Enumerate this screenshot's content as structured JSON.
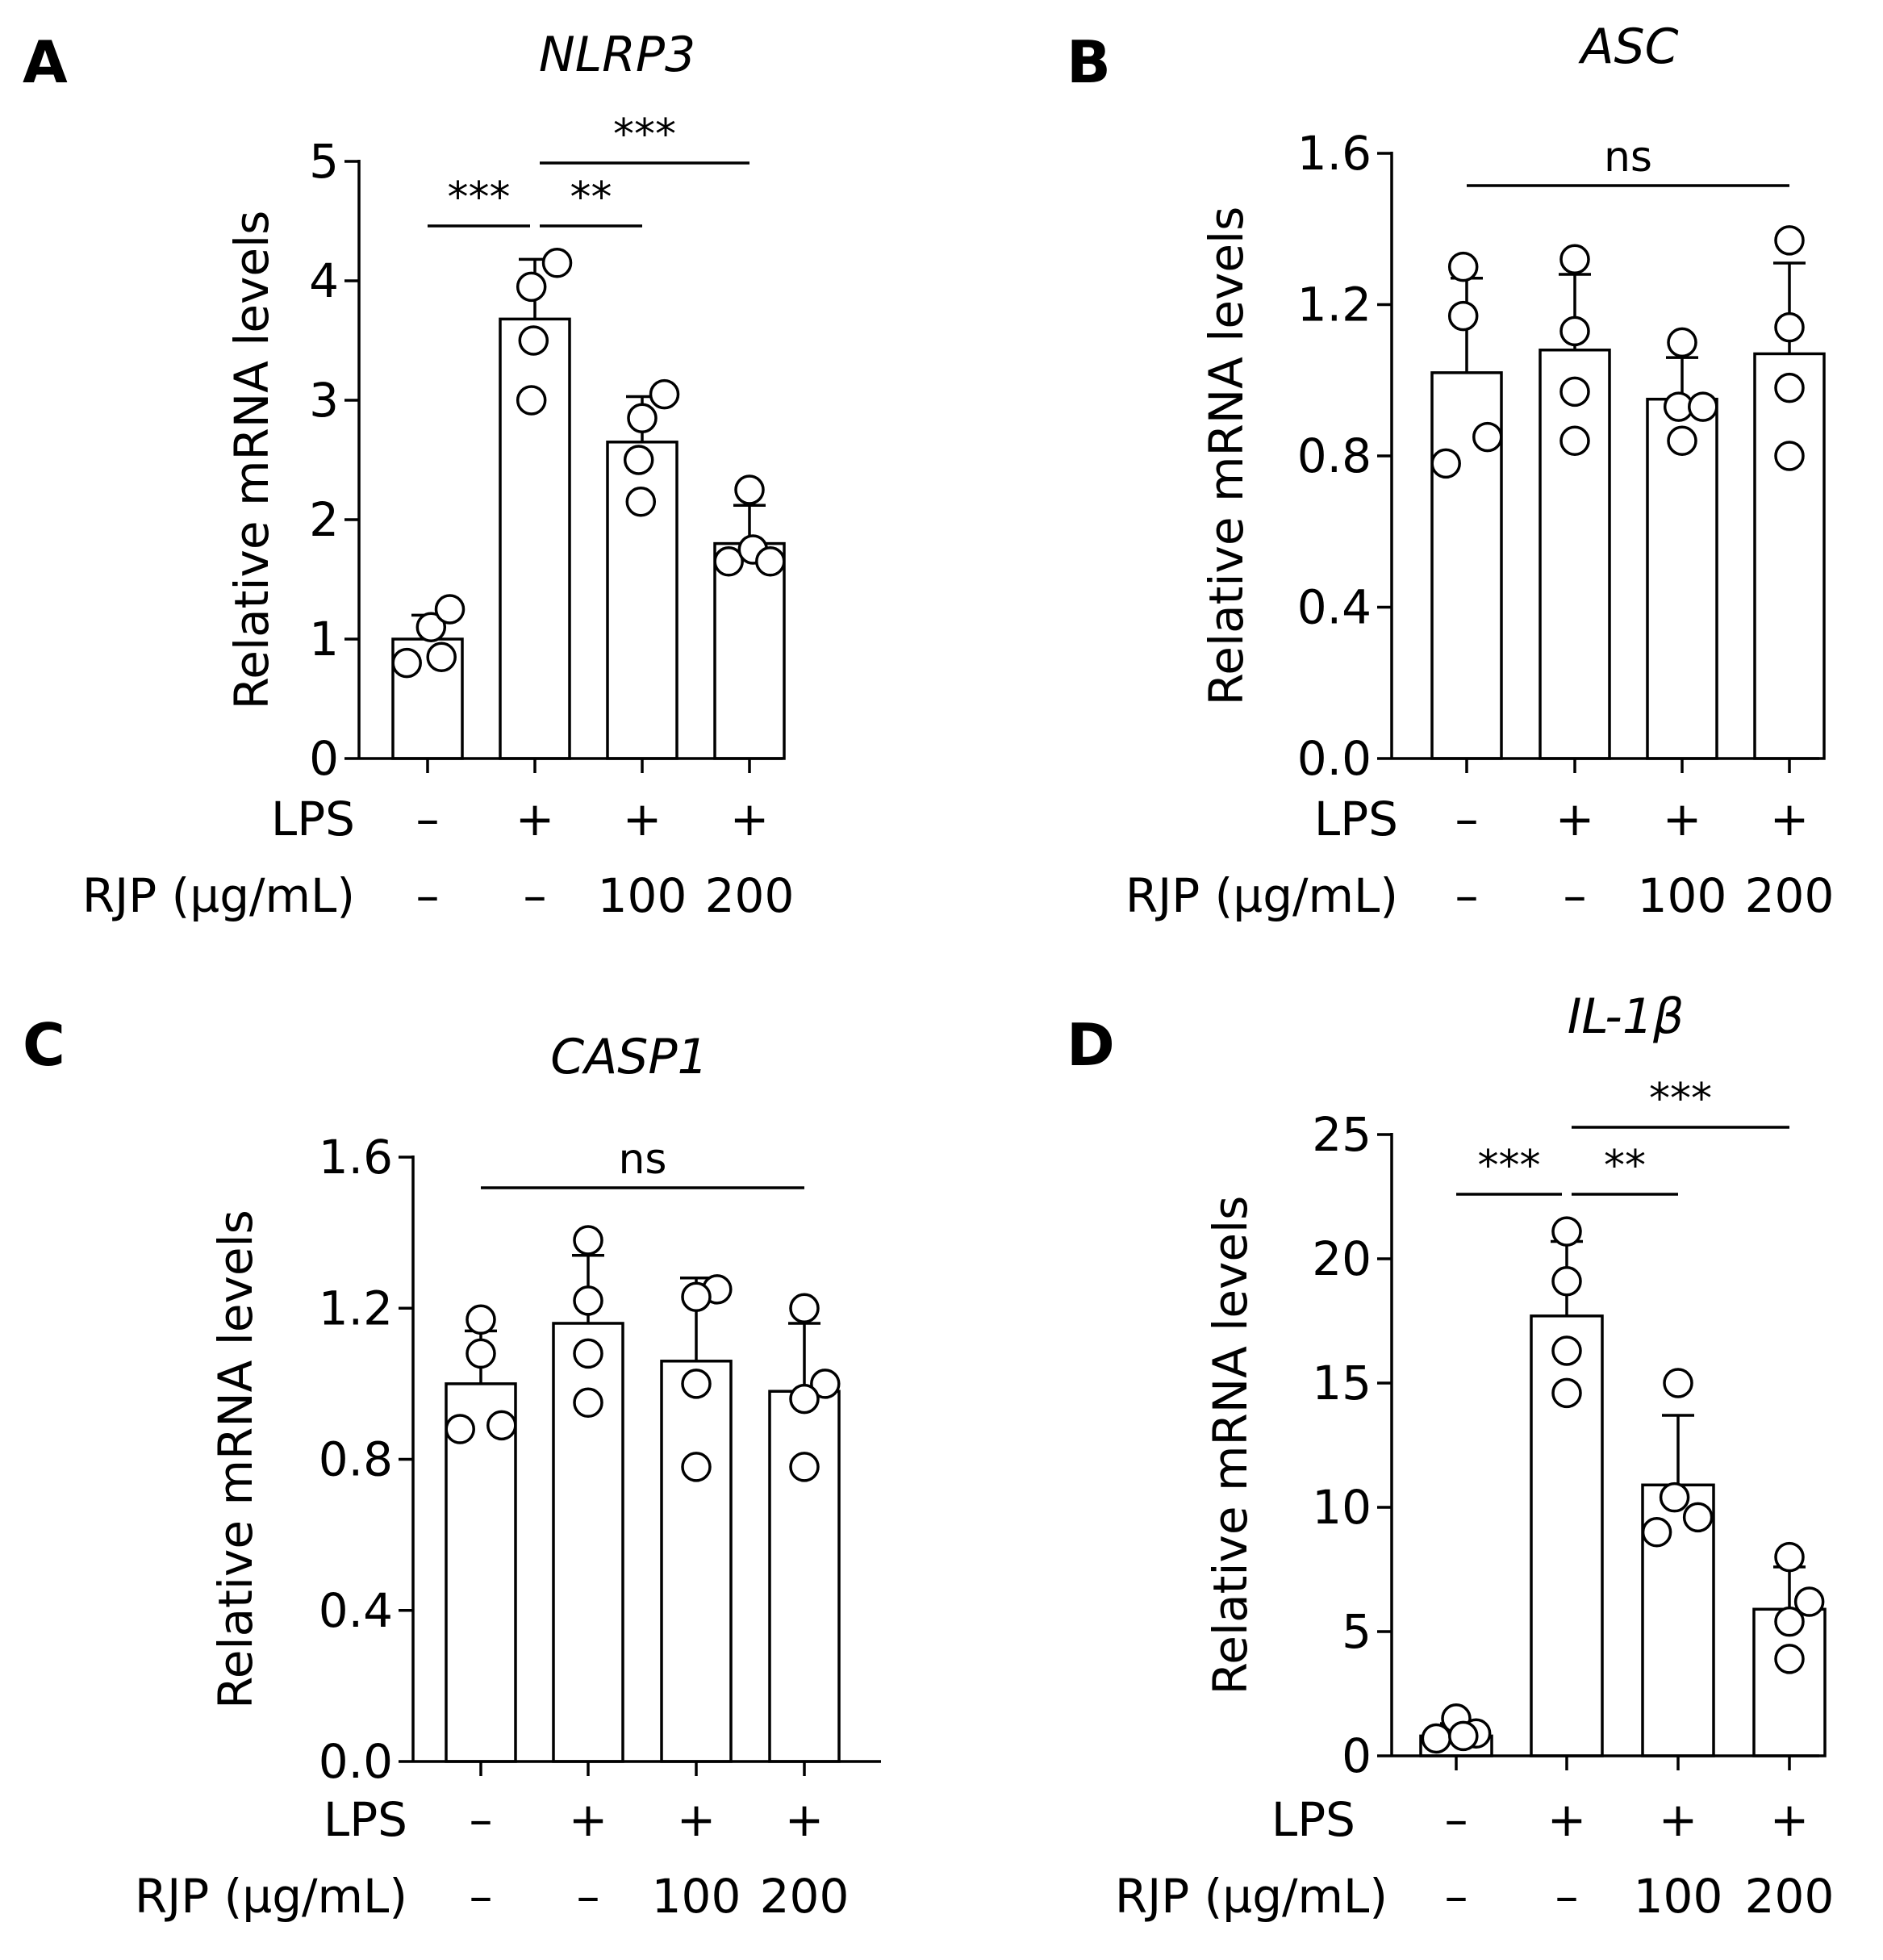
{
  "figure": {
    "condition_labels": {
      "lps": "LPS",
      "rjp": "RJP (µg/mL)"
    },
    "lps_values": [
      "–",
      "+",
      "+",
      "+"
    ],
    "rjp_values": [
      "–",
      "–",
      "100",
      "200"
    ]
  },
  "chart_data": [
    {
      "panel": "A",
      "type": "bar",
      "title": "NLRP3",
      "ylabel": "Relative mRNA levels",
      "ylim": [
        0,
        5
      ],
      "yticks": [
        0,
        1,
        2,
        3,
        4,
        5
      ],
      "ytick_labels": [
        "0",
        "1",
        "2",
        "3",
        "4",
        "5"
      ],
      "categories": [
        "LPS –, RJP –",
        "LPS +, RJP –",
        "LPS +, RJP 100",
        "LPS +, RJP 200"
      ],
      "values": [
        1.0,
        3.68,
        2.65,
        1.8
      ],
      "errors": [
        0.2,
        0.5,
        0.38,
        0.32
      ],
      "points": [
        [
          0.8,
          1.1,
          0.85,
          1.25
        ],
        [
          3.0,
          4.15,
          3.95,
          3.5
        ],
        [
          2.15,
          3.05,
          2.85,
          2.5
        ],
        [
          1.65,
          2.25,
          1.75,
          1.65
        ]
      ],
      "points_dx": [
        [
          -0.3,
          0.05,
          0.2,
          0.32
        ],
        [
          -0.05,
          0.32,
          -0.05,
          -0.02
        ],
        [
          -0.02,
          0.32,
          0.0,
          -0.05
        ],
        [
          -0.3,
          0.0,
          0.05,
          0.3
        ]
      ],
      "significance": [
        {
          "from": 0,
          "to": 1,
          "label": "***"
        },
        {
          "from": 1,
          "to": 2,
          "label": "**"
        },
        {
          "from": 1,
          "to": 3,
          "label": "***"
        }
      ]
    },
    {
      "panel": "B",
      "type": "bar",
      "title": "ASC",
      "ylabel": "Relative mRNA levels",
      "ylim": [
        0,
        1.6
      ],
      "yticks": [
        0,
        0.4,
        0.8,
        1.2,
        1.6
      ],
      "ytick_labels": [
        "0.0",
        "0.4",
        "0.8",
        "1.2",
        "1.6"
      ],
      "categories": [
        "LPS –, RJP –",
        "LPS +, RJP –",
        "LPS +, RJP 100",
        "LPS +, RJP 200"
      ],
      "values": [
        1.02,
        1.08,
        0.95,
        1.07
      ],
      "errors": [
        0.25,
        0.2,
        0.11,
        0.24
      ],
      "points": [
        [
          0.78,
          1.3,
          1.17,
          0.85
        ],
        [
          0.84,
          1.32,
          1.13,
          0.97
        ],
        [
          0.84,
          1.1,
          0.93,
          0.93
        ],
        [
          0.8,
          1.37,
          1.14,
          0.98
        ]
      ],
      "points_dx": [
        [
          -0.3,
          -0.05,
          -0.05,
          0.3
        ],
        [
          0.0,
          0.0,
          0.0,
          0.0
        ],
        [
          0.0,
          0.0,
          -0.05,
          0.3
        ],
        [
          0.0,
          0.0,
          0.0,
          0.0
        ]
      ],
      "significance": [
        {
          "from": 0,
          "to": 3,
          "label": "ns"
        }
      ]
    },
    {
      "panel": "C",
      "type": "bar",
      "title": "CASP1",
      "ylabel": "Relative mRNA levels",
      "ylim": [
        0,
        1.6
      ],
      "yticks": [
        0,
        0.4,
        0.8,
        1.2,
        1.6
      ],
      "ytick_labels": [
        "0.0",
        "0.4",
        "0.8",
        "1.2",
        "1.6"
      ],
      "categories": [
        "LPS –, RJP –",
        "LPS +, RJP –",
        "LPS +, RJP 100",
        "LPS +, RJP 200"
      ],
      "values": [
        1.0,
        1.16,
        1.06,
        0.98
      ],
      "errors": [
        0.14,
        0.18,
        0.22,
        0.18
      ],
      "points": [
        [
          0.88,
          1.17,
          1.08,
          0.89
        ],
        [
          0.95,
          1.38,
          1.22,
          1.08
        ],
        [
          0.78,
          1.25,
          1.23,
          1.0
        ],
        [
          0.78,
          1.2,
          1.0,
          0.96
        ]
      ],
      "points_dx": [
        [
          -0.3,
          0.0,
          0.0,
          0.3
        ],
        [
          0.0,
          0.0,
          0.0,
          0.0
        ],
        [
          0.0,
          0.3,
          0.0,
          0.0
        ],
        [
          0.0,
          0.0,
          0.3,
          0.0
        ]
      ],
      "significance": [
        {
          "from": 0,
          "to": 3,
          "label": "ns"
        }
      ]
    },
    {
      "panel": "D",
      "type": "bar",
      "title": "IL-1β",
      "ylabel": "Relative mRNA levels",
      "ylim": [
        0,
        25
      ],
      "yticks": [
        0,
        5,
        10,
        15,
        20,
        25
      ],
      "ytick_labels": [
        "0",
        "5",
        "10",
        "15",
        "20",
        "25"
      ],
      "categories": [
        "LPS –, RJP –",
        "LPS +, RJP –",
        "LPS +, RJP 100",
        "LPS +, RJP 200"
      ],
      "values": [
        0.8,
        17.7,
        10.9,
        5.9
      ],
      "errors": [
        0.5,
        3.0,
        2.8,
        1.7
      ],
      "points": [
        [
          0.7,
          1.5,
          0.9,
          0.8
        ],
        [
          14.6,
          21.1,
          19.1,
          16.3
        ],
        [
          9.0,
          15.0,
          10.4,
          9.6
        ],
        [
          3.9,
          8.0,
          6.2,
          5.4
        ]
      ],
      "points_dx": [
        [
          -0.28,
          0.0,
          0.28,
          0.1
        ],
        [
          0.0,
          0.0,
          0.0,
          0.0
        ],
        [
          -0.3,
          0.0,
          -0.05,
          0.28
        ],
        [
          0.0,
          0.0,
          0.28,
          0.0
        ]
      ],
      "significance": [
        {
          "from": 0,
          "to": 1,
          "label": "***"
        },
        {
          "from": 1,
          "to": 2,
          "label": "**"
        },
        {
          "from": 1,
          "to": 3,
          "label": "***"
        }
      ]
    }
  ]
}
